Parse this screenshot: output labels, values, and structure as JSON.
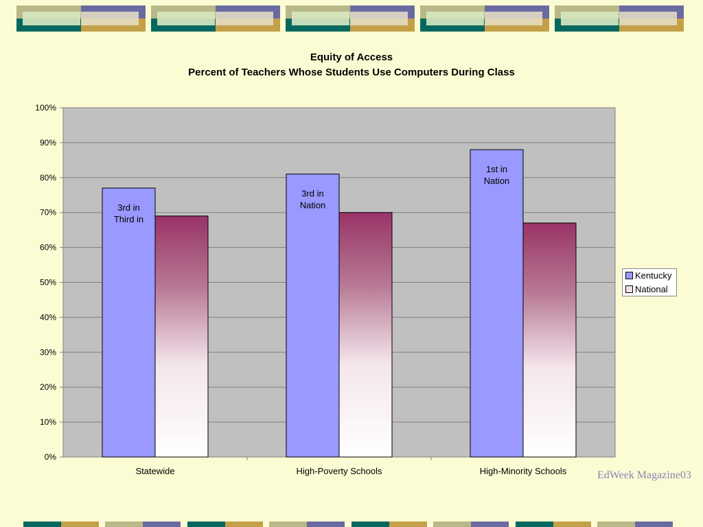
{
  "chart_data": {
    "type": "bar",
    "title": "Equity of Access",
    "subtitle": "Percent of Teachers Whose Students Use Computers During Class",
    "categories": [
      "Statewide",
      "High-Poverty Schools",
      "High-Minority Schools"
    ],
    "series": [
      {
        "name": "Kentucky",
        "values": [
          77,
          81,
          88
        ],
        "color": "#9999ff"
      },
      {
        "name": "National",
        "values": [
          69,
          70,
          67
        ],
        "color_top": "#993366",
        "color_bottom": "#ffffff"
      }
    ],
    "annotations": [
      {
        "category": "Statewide",
        "series": "Kentucky",
        "lines": [
          "3rd in",
          "Third in"
        ]
      },
      {
        "category": "High-Poverty Schools",
        "series": "Kentucky",
        "lines": [
          "3rd in",
          "Nation"
        ]
      },
      {
        "category": "High-Minority Schools",
        "series": "Kentucky",
        "lines": [
          "1st in",
          "Nation"
        ]
      }
    ],
    "y_ticks": [
      "0%",
      "10%",
      "20%",
      "30%",
      "40%",
      "50%",
      "60%",
      "70%",
      "80%",
      "90%",
      "100%"
    ],
    "ylim": [
      0,
      100
    ],
    "grid": true,
    "legend_position": "right",
    "plot_background": "#c0c0c0"
  },
  "source_note": "EdWeek Magazine03",
  "theme": {
    "olive": "#b8b888",
    "slate": "#6a6aa2",
    "teal": "#05685e",
    "gold": "#c4a048"
  }
}
